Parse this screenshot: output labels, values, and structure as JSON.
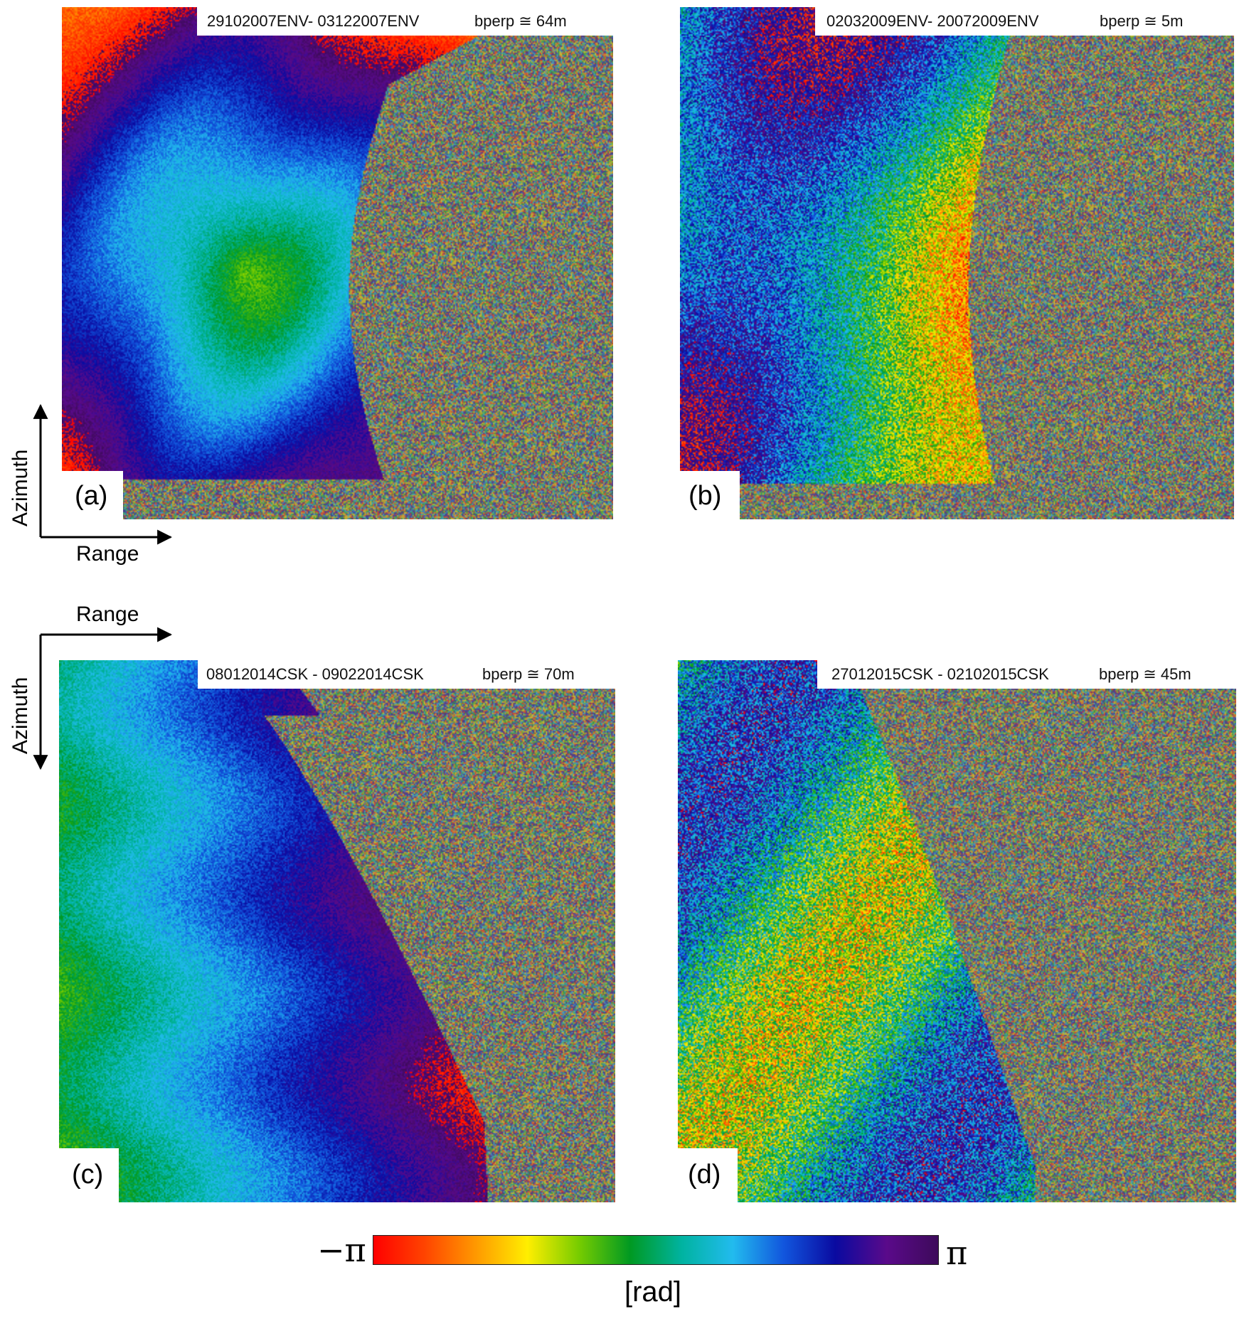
{
  "panels": [
    {
      "letter": "(a)",
      "pair": "29102007ENV- 03122007ENV",
      "bperp": "bperp ≅ 64m"
    },
    {
      "letter": "(b)",
      "pair": "02032009ENV- 20072009ENV",
      "bperp": "bperp ≅ 5m"
    },
    {
      "letter": "(c)",
      "pair": "08012014CSK - 09022014CSK",
      "bperp": "bperp ≅  70m"
    },
    {
      "letter": "(d)",
      "pair": "27012015CSK - 02102015CSK",
      "bperp": "bperp ≅  45m"
    }
  ],
  "axes_top": {
    "vertical": "Azimuth",
    "horizontal": "Range"
  },
  "axes_bottom": {
    "vertical": "Azimuth",
    "horizontal": "Range"
  },
  "colorbar": {
    "min_label": "−π",
    "max_label": "π",
    "unit": "[rad]",
    "colors": [
      "#ff0000",
      "#ff4400",
      "#ff9900",
      "#ffee00",
      "#77cc00",
      "#009922",
      "#00b3a0",
      "#22bbee",
      "#1155dd",
      "#0a0aa0",
      "#5a0a8a",
      "#3d0a5a"
    ]
  },
  "noise_colors": [
    "#8c8c6e",
    "#7a9a6a",
    "#9a7a6a",
    "#6a8a9a",
    "#a08a50",
    "#6aa07a",
    "#8a6a9a"
  ]
}
